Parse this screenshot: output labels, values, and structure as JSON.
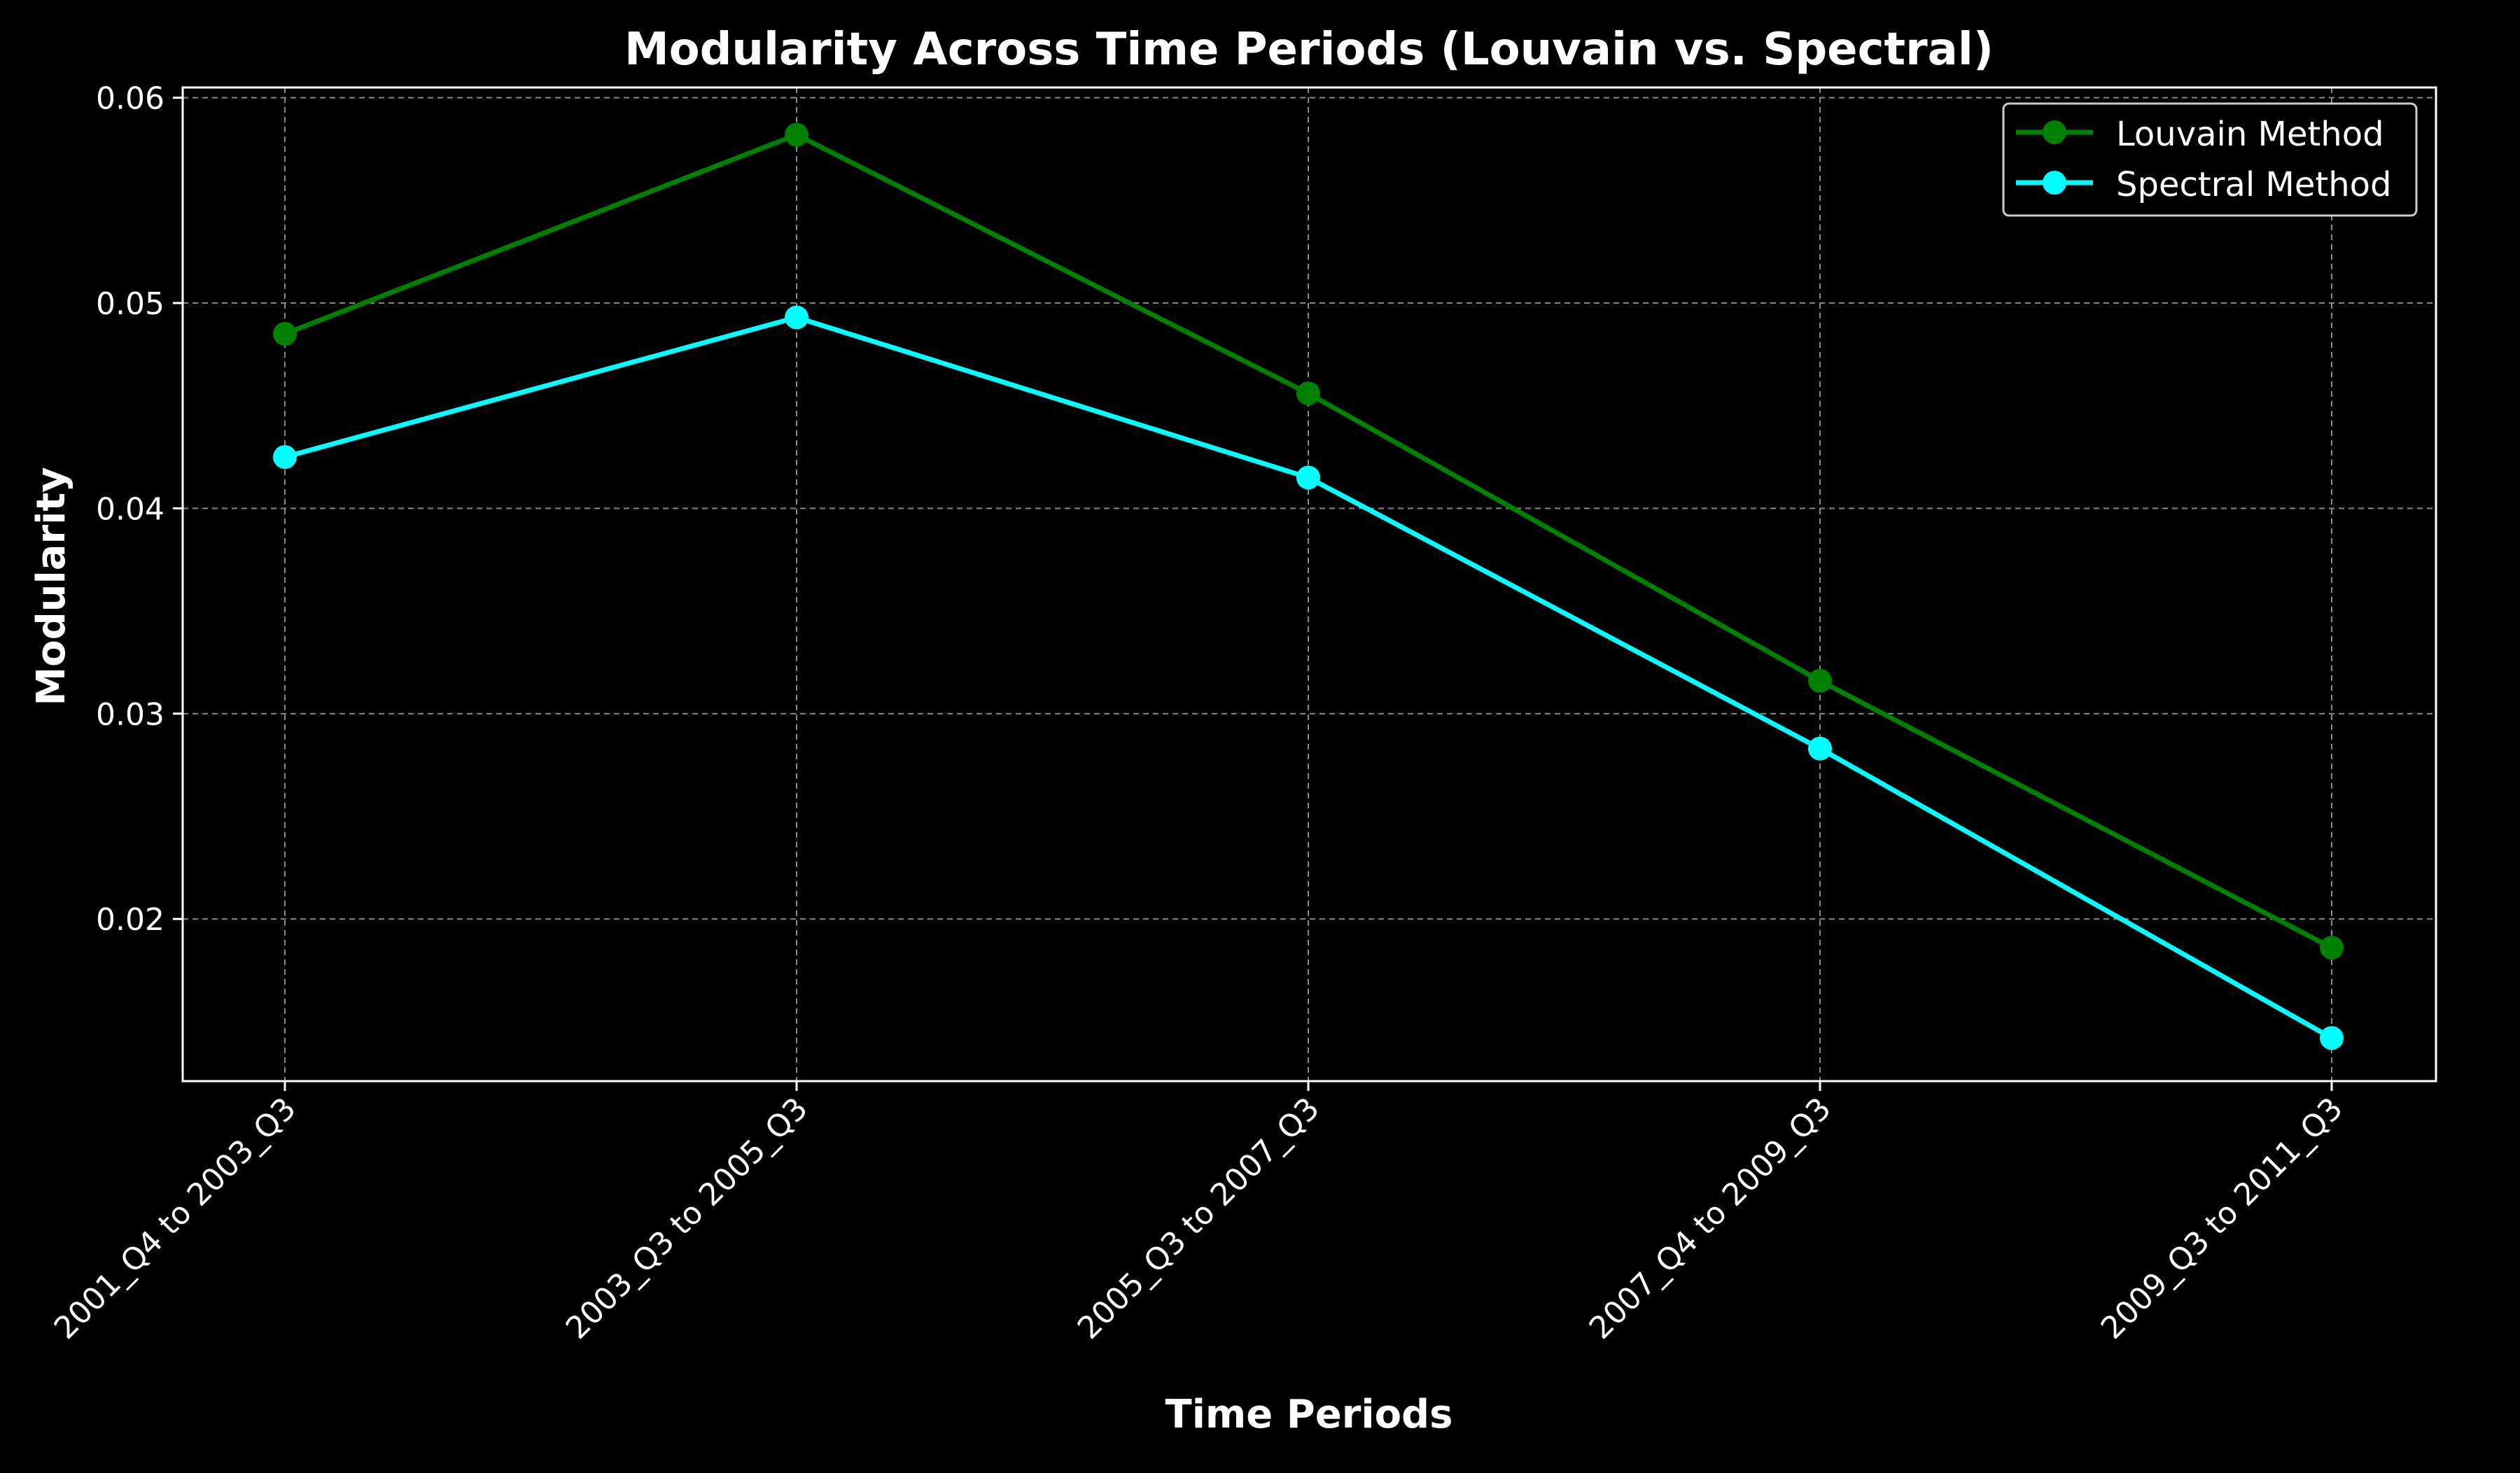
{
  "chart_data": {
    "type": "line",
    "title": "Modularity Across Time Periods (Louvain vs. Spectral)",
    "xlabel": "Time Periods",
    "ylabel": "Modularity",
    "categories": [
      "2001_Q4 to 2003_Q3",
      "2003_Q3 to 2005_Q3",
      "2005_Q3 to 2007_Q3",
      "2007_Q4 to 2009_Q3",
      "2009_Q3 to 2011_Q3"
    ],
    "yticks": [
      "0.02",
      "0.03",
      "0.04",
      "0.05",
      "0.06"
    ],
    "ylim": [
      0.0121,
      0.0605
    ],
    "grid": true,
    "legend_position": "top-right",
    "series": [
      {
        "name": "Louvain Method",
        "color": "#008000",
        "values": [
          0.0485,
          0.0582,
          0.0456,
          0.0316,
          0.0186
        ]
      },
      {
        "name": "Spectral Method",
        "color": "#00ffff",
        "values": [
          0.0425,
          0.0493,
          0.0415,
          0.0283,
          0.0142
        ]
      }
    ]
  }
}
